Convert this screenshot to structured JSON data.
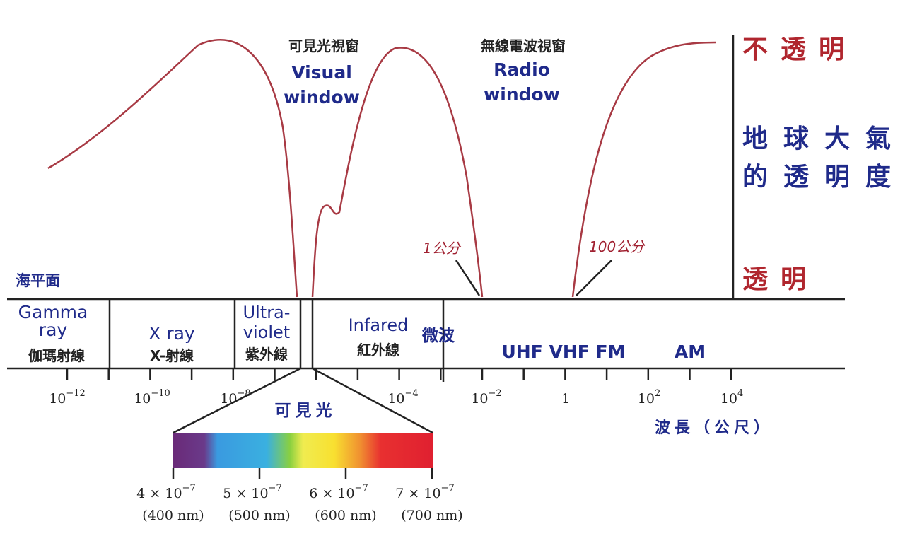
{
  "windows": {
    "visual": {
      "zh": "可見光視窗",
      "en": [
        "Visual",
        "window"
      ]
    },
    "radio": {
      "zh": "無線電波視窗",
      "en": [
        "Radio",
        "window"
      ]
    }
  },
  "opacity": {
    "opaque": "不透明",
    "title": [
      "地球大氣",
      "的透明度"
    ],
    "transparent": "透明"
  },
  "markers": [
    "1公分",
    "100公分"
  ],
  "sea_level": "海平面",
  "bands": [
    {
      "en": [
        "Gamma",
        "ray"
      ],
      "zh": "伽瑪射線"
    },
    {
      "en": [
        "X ray"
      ],
      "zh": "X-射線"
    },
    {
      "en": [
        "Ultra-",
        "violet"
      ],
      "zh": "紫外線"
    },
    {
      "en": [
        "Infared"
      ],
      "zh": "紅外線"
    },
    {
      "zh": "微波"
    },
    {
      "en": [
        "UHF VHF FM"
      ]
    },
    {
      "en": [
        "AM"
      ]
    }
  ],
  "wavelength_ticks": [
    {
      "base": "10",
      "exp": "−12"
    },
    {
      "base": "10",
      "exp": "−10"
    },
    {
      "base": "10",
      "exp": "−8"
    },
    {
      "base": "10",
      "exp": "−4"
    },
    {
      "base": "10",
      "exp": "−2"
    },
    {
      "base": "1"
    },
    {
      "base": "10",
      "exp": "2"
    },
    {
      "base": "10",
      "exp": "4"
    }
  ],
  "visible_label": "可見光",
  "axis_label": "波長（公尺）",
  "spectrum_ticks": [
    {
      "mantissa": "4 × 10",
      "exp": "−7",
      "nm": "(400 nm)"
    },
    {
      "mantissa": "5 × 10",
      "exp": "−7",
      "nm": "(500 nm)"
    },
    {
      "mantissa": "6 × 10",
      "exp": "−7",
      "nm": "(600 nm)"
    },
    {
      "mantissa": "7 × 10",
      "exp": "−7",
      "nm": "(700 nm)"
    }
  ]
}
